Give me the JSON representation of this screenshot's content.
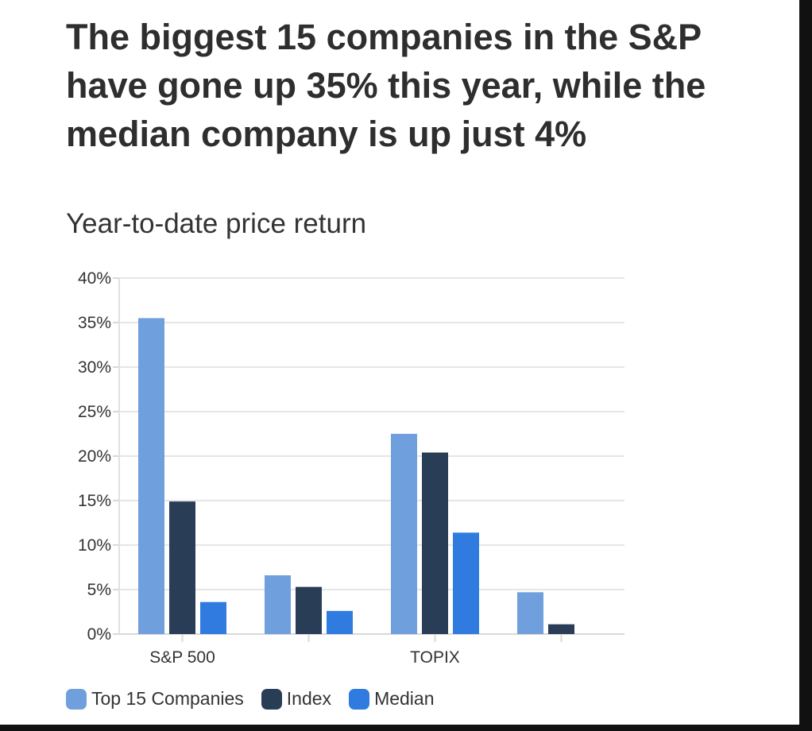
{
  "chart_data": {
    "type": "bar",
    "title": "The biggest 15 companies in the S&P have gone up 35% this year, while the median company is up just 4%",
    "subtitle": "Year-to-date price return",
    "categories": [
      "S&P 500",
      "",
      "TOPIX",
      ""
    ],
    "series": [
      {
        "name": "Top 15 Companies",
        "color": "#6f9fdc",
        "values": [
          35.5,
          6.6,
          22.5,
          4.7
        ]
      },
      {
        "name": "Index",
        "color": "#2a3d57",
        "values": [
          14.9,
          5.3,
          20.4,
          1.1
        ]
      },
      {
        "name": "Median",
        "color": "#2f7be0",
        "values": [
          3.6,
          2.6,
          11.4,
          0
        ]
      }
    ],
    "ylim": [
      0,
      40
    ],
    "yticks": [
      "0%",
      "5%",
      "10%",
      "15%",
      "20%",
      "25%",
      "30%",
      "35%",
      "40%"
    ],
    "grid": true,
    "legend": "bottom-left"
  }
}
